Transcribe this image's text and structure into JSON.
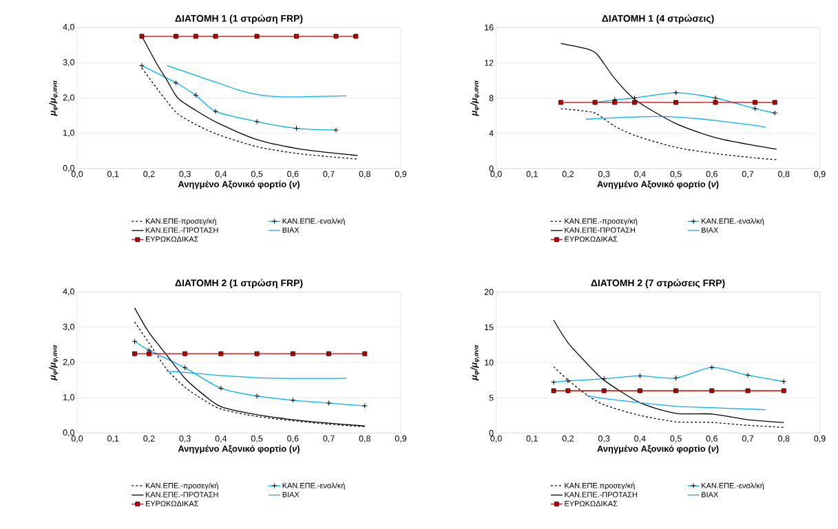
{
  "chart_data": [
    {
      "type": "line",
      "title": "ΔΙΑΤΟΜΗ 1 (1 στρώση FRP)",
      "xlabel": "Ανηγμένο Αξονικό φορτίο (*ν*)",
      "ylabel": "μ$_{φ}$/μ$_{φ,ανα}$",
      "xlim": [
        0,
        0.9
      ],
      "ylim": [
        0,
        4
      ],
      "xticks": [
        {
          "value": 0,
          "label": "0,0"
        },
        {
          "value": 0.1,
          "label": "0,1"
        },
        {
          "value": 0.2,
          "label": "0,2"
        },
        {
          "value": 0.3,
          "label": "0,3"
        },
        {
          "value": 0.4,
          "label": "0,4"
        },
        {
          "value": 0.5,
          "label": "0,5"
        },
        {
          "value": 0.6,
          "label": "0,6"
        },
        {
          "value": 0.7,
          "label": "0,7"
        },
        {
          "value": 0.8,
          "label": "0,8"
        },
        {
          "value": 0.9,
          "label": "0,9"
        }
      ],
      "yticks": [
        {
          "value": 0,
          "label": "0,0"
        },
        {
          "value": 1,
          "label": "1,0"
        },
        {
          "value": 2,
          "label": "2,0"
        },
        {
          "value": 3,
          "label": "3,0"
        },
        {
          "value": 4,
          "label": "4,0"
        }
      ],
      "grid": "y",
      "legend": "bottom",
      "series": [
        {
          "name": "ΚΑΝ.ΕΠΕ-προσεγ/κή",
          "color": "#000000",
          "line_style": "dashed",
          "marker": "none",
          "x": [
            0.18,
            0.22,
            0.25,
            0.28,
            0.33,
            0.39,
            0.5,
            0.61,
            0.72,
            0.78
          ],
          "values": [
            2.85,
            2.3,
            1.9,
            1.55,
            1.25,
            0.97,
            0.62,
            0.43,
            0.32,
            0.27
          ]
        },
        {
          "name": "ΚΑΝ.ΕΠΕ.-εναλ/κή",
          "color": "#00b0f0",
          "line_style": "solid",
          "marker": "cross",
          "x": [
            0.18,
            0.275,
            0.33,
            0.385,
            0.5,
            0.61,
            0.72
          ],
          "values": [
            2.92,
            2.43,
            2.08,
            1.62,
            1.33,
            1.14,
            1.09
          ]
        },
        {
          "name": "ΚΑΝ.ΕΠΕ.-ΠΡΟΤΑΣΗ",
          "color": "#000000",
          "line_style": "solid",
          "marker": "none",
          "x": [
            0.18,
            0.22,
            0.25,
            0.28,
            0.33,
            0.39,
            0.5,
            0.61,
            0.72,
            0.78
          ],
          "values": [
            3.75,
            3.0,
            2.5,
            2.0,
            1.65,
            1.3,
            0.82,
            0.57,
            0.43,
            0.37
          ]
        },
        {
          "name": "BIAX",
          "color": "#00b0f0",
          "line_style": "solid",
          "marker": "none",
          "x": [
            0.25,
            0.3,
            0.35,
            0.4,
            0.45,
            0.5,
            0.55,
            0.6,
            0.65,
            0.7,
            0.75
          ],
          "values": [
            2.92,
            2.75,
            2.57,
            2.4,
            2.22,
            2.1,
            2.04,
            2.03,
            2.04,
            2.05,
            2.06
          ]
        },
        {
          "name": "ΕΥΡΩΚΩΔΙΚΑΣ",
          "color": "#c00000",
          "line_style": "solid",
          "marker": "square",
          "x": [
            0.18,
            0.275,
            0.33,
            0.385,
            0.5,
            0.61,
            0.72,
            0.775
          ],
          "values": [
            3.75,
            3.75,
            3.75,
            3.75,
            3.75,
            3.75,
            3.75,
            3.75
          ]
        }
      ]
    },
    {
      "type": "line",
      "title": "ΔΙΑΤΟΜΗ 1 (4 στρώσεις)",
      "xlabel": "Ανηγμένο Αξονικό φορτίο (*ν*)",
      "ylabel": "μ$_{φ}$/μ$_{φ,ανα}$",
      "xlim": [
        0,
        0.9
      ],
      "ylim": [
        0,
        16
      ],
      "xticks": [
        {
          "value": 0,
          "label": "0,0"
        },
        {
          "value": 0.1,
          "label": "0,1"
        },
        {
          "value": 0.2,
          "label": "0,2"
        },
        {
          "value": 0.3,
          "label": "0,3"
        },
        {
          "value": 0.4,
          "label": "0,4"
        },
        {
          "value": 0.5,
          "label": "0,5"
        },
        {
          "value": 0.6,
          "label": "0,6"
        },
        {
          "value": 0.7,
          "label": "0,7"
        },
        {
          "value": 0.8,
          "label": "0,8"
        },
        {
          "value": 0.9,
          "label": "0,9"
        }
      ],
      "yticks": [
        0,
        4,
        8,
        12,
        16
      ],
      "grid": "y",
      "legend": "bottom",
      "series": [
        {
          "name": "ΚΑΝ.ΕΠΕ.-προσεγ/κή",
          "color": "#000000",
          "line_style": "dashed",
          "marker": "none",
          "x": [
            0.18,
            0.25,
            0.28,
            0.33,
            0.39,
            0.5,
            0.61,
            0.72,
            0.78
          ],
          "values": [
            6.8,
            6.5,
            6.2,
            4.8,
            3.7,
            2.4,
            1.7,
            1.2,
            1.0
          ]
        },
        {
          "name": "ΚΑΝ.ΕΠΕ.-εναλ/κή",
          "color": "#00b0f0",
          "line_style": "solid",
          "marker": "cross",
          "x": [
            0.275,
            0.33,
            0.385,
            0.5,
            0.61,
            0.72,
            0.775
          ],
          "values": [
            7.5,
            7.8,
            8.0,
            8.6,
            8.0,
            6.8,
            6.3
          ]
        },
        {
          "name": "ΚΑΝ.ΕΠΕ-ΠΡΟΤΑΣΗ",
          "color": "#000000",
          "line_style": "solid",
          "marker": "none",
          "x": [
            0.18,
            0.25,
            0.28,
            0.33,
            0.39,
            0.5,
            0.61,
            0.72,
            0.78
          ],
          "values": [
            14.2,
            13.6,
            13.0,
            10.2,
            7.7,
            5.1,
            3.5,
            2.6,
            2.2
          ]
        },
        {
          "name": "BIAX",
          "color": "#00b0f0",
          "line_style": "solid",
          "marker": "none",
          "x": [
            0.25,
            0.35,
            0.45,
            0.5,
            0.6,
            0.7,
            0.75
          ],
          "values": [
            5.6,
            5.8,
            5.9,
            5.85,
            5.5,
            5.0,
            4.7
          ]
        },
        {
          "name": "ΕΥΡΩΚΩΔΙΚΑΣ",
          "color": "#c00000",
          "line_style": "solid",
          "marker": "square",
          "x": [
            0.18,
            0.275,
            0.33,
            0.385,
            0.5,
            0.61,
            0.72,
            0.775
          ],
          "values": [
            7.5,
            7.5,
            7.5,
            7.5,
            7.5,
            7.5,
            7.5,
            7.5
          ]
        }
      ]
    },
    {
      "type": "line",
      "title": "ΔΙΑΤΟΜΗ 2 (1 στρώση FRP)",
      "xlabel": "Ανηγμένο Αξονικό φορτίο (*ν*)",
      "ylabel": "μ$_{φ}$/μ$_{φ,ανα}$",
      "xlim": [
        0,
        0.9
      ],
      "ylim": [
        0,
        4
      ],
      "xticks": [
        {
          "value": 0,
          "label": "0,0"
        },
        {
          "value": 0.1,
          "label": "0,1"
        },
        {
          "value": 0.2,
          "label": "0,2"
        },
        {
          "value": 0.3,
          "label": "0,3"
        },
        {
          "value": 0.4,
          "label": "0,4"
        },
        {
          "value": 0.5,
          "label": "0,5"
        },
        {
          "value": 0.6,
          "label": "0,6"
        },
        {
          "value": 0.7,
          "label": "0,7"
        },
        {
          "value": 0.8,
          "label": "0,8"
        },
        {
          "value": 0.9,
          "label": "0,9"
        }
      ],
      "yticks": [
        {
          "value": 0,
          "label": "0,0"
        },
        {
          "value": 1,
          "label": "1,0"
        },
        {
          "value": 2,
          "label": "2,0"
        },
        {
          "value": 3,
          "label": "3,0"
        },
        {
          "value": 4,
          "label": "4,0"
        }
      ],
      "grid": "y",
      "legend": "bottom",
      "series": [
        {
          "name": "ΚΑΝ.ΕΠΕ.-προσεγ/κή",
          "color": "#000000",
          "line_style": "dashed",
          "marker": "none",
          "x": [
            0.16,
            0.2,
            0.25,
            0.3,
            0.35,
            0.4,
            0.5,
            0.6,
            0.7,
            0.8
          ],
          "values": [
            3.15,
            2.55,
            1.8,
            1.3,
            0.95,
            0.68,
            0.47,
            0.35,
            0.25,
            0.18
          ]
        },
        {
          "name": "ΚΑΝ.ΕΠΕ.-εναλ/κή",
          "color": "#00b0f0",
          "line_style": "solid",
          "marker": "cross",
          "x": [
            0.16,
            0.2,
            0.3,
            0.4,
            0.5,
            0.6,
            0.7,
            0.8
          ],
          "values": [
            2.6,
            2.35,
            1.85,
            1.27,
            1.05,
            0.93,
            0.85,
            0.77
          ]
        },
        {
          "name": "ΚΑΝ.ΕΠΕ.-ΠΡΟΤΑΣΗ",
          "color": "#000000",
          "line_style": "solid",
          "marker": "none",
          "x": [
            0.16,
            0.2,
            0.25,
            0.3,
            0.35,
            0.4,
            0.5,
            0.6,
            0.7,
            0.8
          ],
          "values": [
            3.55,
            2.85,
            2.2,
            1.55,
            1.1,
            0.75,
            0.52,
            0.38,
            0.28,
            0.2
          ]
        },
        {
          "name": "BIAX",
          "color": "#00b0f0",
          "line_style": "solid",
          "marker": "none",
          "x": [
            0.25,
            0.3,
            0.4,
            0.5,
            0.6,
            0.7,
            0.75
          ],
          "values": [
            1.75,
            1.72,
            1.63,
            1.57,
            1.55,
            1.55,
            1.56
          ]
        },
        {
          "name": "ΕΥΡΩΚΩΔΙΚΑΣ",
          "color": "#c00000",
          "line_style": "solid",
          "marker": "square",
          "x": [
            0.16,
            0.2,
            0.3,
            0.4,
            0.5,
            0.6,
            0.7,
            0.8
          ],
          "values": [
            2.25,
            2.25,
            2.25,
            2.25,
            2.25,
            2.25,
            2.25,
            2.25
          ]
        }
      ]
    },
    {
      "type": "line",
      "title": "ΔΙΑΤΟΜΗ 2 (7 στρώσεις FRP)",
      "xlabel": "Ανηγμένο Αξονικό φορτίο (*ν*)",
      "ylabel": "μ$_{φ}$/μ$_{φ,ανα}$",
      "xlim": [
        0,
        0.9
      ],
      "ylim": [
        0,
        20
      ],
      "xticks": [
        {
          "value": 0,
          "label": "0,0"
        },
        {
          "value": 0.1,
          "label": "0,1"
        },
        {
          "value": 0.2,
          "label": "0,2"
        },
        {
          "value": 0.3,
          "label": "0,3"
        },
        {
          "value": 0.4,
          "label": "0,4"
        },
        {
          "value": 0.5,
          "label": "0,5"
        },
        {
          "value": 0.6,
          "label": "0,6"
        },
        {
          "value": 0.7,
          "label": "0,7"
        },
        {
          "value": 0.8,
          "label": "0,8"
        },
        {
          "value": 0.9,
          "label": "0,9"
        }
      ],
      "yticks": [
        0,
        5,
        10,
        15,
        20
      ],
      "grid": "y",
      "legend": "bottom",
      "series": [
        {
          "name": "ΚΑΝ.ΕΠΕ.προσεγ/κή",
          "color": "#000000",
          "line_style": "dashed",
          "marker": "none",
          "x": [
            0.16,
            0.2,
            0.25,
            0.3,
            0.4,
            0.5,
            0.6,
            0.7,
            0.8
          ],
          "values": [
            9.4,
            7.5,
            5.5,
            4.0,
            2.5,
            1.6,
            1.5,
            1.1,
            0.8
          ]
        },
        {
          "name": "ΚΑΝ.ΕΠΕ.-εναλ/κή",
          "color": "#00b0f0",
          "line_style": "solid",
          "marker": "cross",
          "x": [
            0.16,
            0.2,
            0.3,
            0.4,
            0.5,
            0.6,
            0.7,
            0.8
          ],
          "values": [
            7.2,
            7.4,
            7.7,
            8.1,
            7.8,
            9.3,
            8.2,
            7.3
          ]
        },
        {
          "name": "ΚΑΝ.ΕΠΕ.-ΠΡΟΤΑΣΗ",
          "color": "#000000",
          "line_style": "solid",
          "marker": "none",
          "x": [
            0.16,
            0.2,
            0.25,
            0.3,
            0.4,
            0.5,
            0.6,
            0.7,
            0.8
          ],
          "values": [
            16.0,
            12.8,
            10.0,
            7.5,
            4.3,
            2.8,
            2.7,
            1.9,
            1.5
          ]
        },
        {
          "name": "BIAX",
          "color": "#00b0f0",
          "line_style": "solid",
          "marker": "none",
          "x": [
            0.25,
            0.3,
            0.4,
            0.5,
            0.6,
            0.7,
            0.75
          ],
          "values": [
            5.3,
            4.9,
            4.3,
            3.8,
            3.6,
            3.4,
            3.3
          ]
        },
        {
          "name": "ΕΥΡΩΚΩΔΙΚΑΣ",
          "color": "#c00000",
          "line_style": "solid",
          "marker": "square",
          "x": [
            0.16,
            0.2,
            0.3,
            0.4,
            0.5,
            0.6,
            0.7,
            0.8
          ],
          "values": [
            6.0,
            6.0,
            6.0,
            6.0,
            6.0,
            6.0,
            6.0,
            6.0
          ]
        }
      ]
    }
  ]
}
